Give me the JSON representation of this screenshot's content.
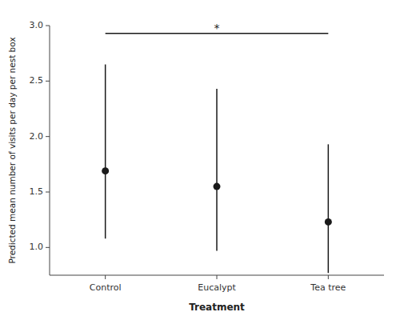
{
  "chart_data": {
    "type": "scatter",
    "xlabel": "Treatment",
    "ylabel": "Predicted mean number of visits per day per nest box",
    "categories": [
      "Control",
      "Eucalypt",
      "Tea tree"
    ],
    "values": [
      1.69,
      1.55,
      1.23
    ],
    "ci_lower": [
      1.08,
      0.97,
      0.77
    ],
    "ci_upper": [
      2.65,
      2.43,
      1.93
    ],
    "color": "#1a1a1a",
    "ylim": [
      0.75,
      3.0
    ],
    "yticks": [
      {
        "value": 1.0,
        "label": "1.0"
      },
      1.5,
      {
        "value": 2.0,
        "label": "2.0"
      },
      2.5,
      {
        "value": 3.0,
        "label": "3.0"
      }
    ],
    "grid": false,
    "annotations": [
      {
        "text": "*",
        "from": "Control",
        "to": "Tea tree",
        "y": 2.93
      }
    ]
  }
}
